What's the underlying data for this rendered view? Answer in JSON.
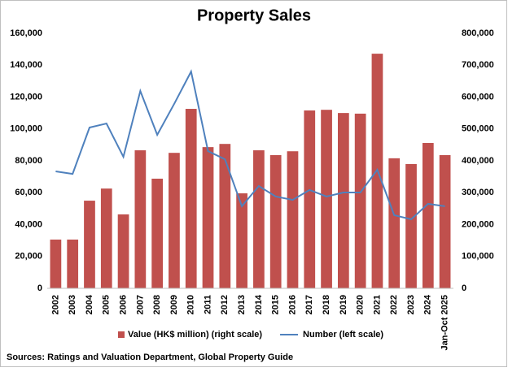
{
  "chart_data": {
    "type": "combo",
    "title": "Property Sales",
    "categories": [
      "2002",
      "2003",
      "2004",
      "2005",
      "2006",
      "2007",
      "2008",
      "2009",
      "2010",
      "2011",
      "2012",
      "2013",
      "2014",
      "2015",
      "2016",
      "2017",
      "2018",
      "2019",
      "2020",
      "2021",
      "2022",
      "2023",
      "2024",
      "Jan-Oct 2025"
    ],
    "series": [
      {
        "name": "Value (HK$ million) (right scale)",
        "type": "bar",
        "axis": "y2",
        "color": "#c0504d",
        "values": [
          153000,
          153000,
          275000,
          313000,
          232000,
          433000,
          344000,
          425000,
          563000,
          443000,
          453000,
          298000,
          433000,
          418000,
          430000,
          558000,
          560000,
          550000,
          548000,
          736000,
          408000,
          390000,
          456000,
          418000
        ]
      },
      {
        "name": "Number (left scale)",
        "type": "line",
        "color": "#4f81bd",
        "values": [
          73400,
          71800,
          100900,
          103400,
          82500,
          123800,
          96300,
          115700,
          136000,
          86100,
          81000,
          51500,
          64200,
          57600,
          55500,
          61700,
          57600,
          60100,
          60100,
          74400,
          45900,
          43300,
          53000,
          51500
        ]
      }
    ],
    "ylim": [
      0,
      160000
    ],
    "yticks": [
      0,
      {
        "value": 20000,
        "label": "20,000"
      },
      {
        "value": 40000,
        "label": "40,000"
      },
      {
        "value": 60000,
        "label": "60,000"
      },
      {
        "value": 80000,
        "label": "80,000"
      },
      {
        "value": 100000,
        "label": "100,000"
      },
      {
        "value": 120000,
        "label": "120,000"
      },
      {
        "value": 140000,
        "label": "140,000"
      },
      {
        "value": 160000,
        "label": "160,000"
      }
    ],
    "y2lim": [
      0,
      800000
    ],
    "y2ticks": [
      0,
      {
        "value": 100000,
        "label": "100,000"
      },
      {
        "value": 200000,
        "label": "200,000"
      },
      {
        "value": 300000,
        "label": "300,000"
      },
      {
        "value": 400000,
        "label": "400,000"
      },
      {
        "value": 500000,
        "label": "500,000"
      },
      {
        "value": 600000,
        "label": "600,000"
      },
      {
        "value": 700000,
        "label": "700,000"
      },
      {
        "value": 800000,
        "label": "800,000"
      }
    ],
    "grid": false,
    "legend": "bottom",
    "source": "Sources: Ratings and Valuation Department, Global Property Guide"
  }
}
